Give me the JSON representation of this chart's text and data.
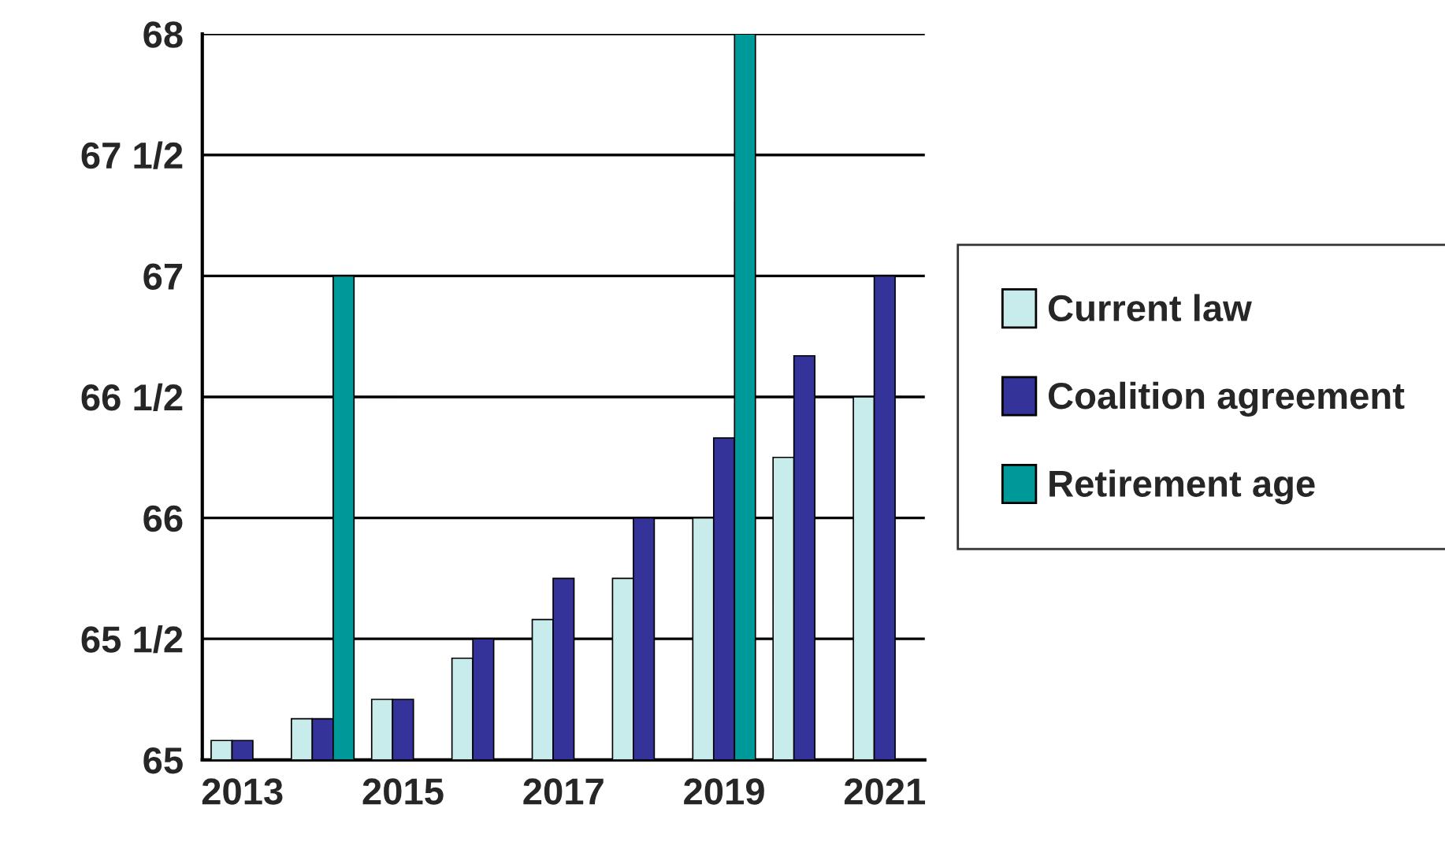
{
  "chart_data": {
    "type": "bar",
    "categories": [
      "2013",
      null,
      "2015",
      null,
      "2017",
      null,
      "2019",
      null,
      "2021"
    ],
    "series": [
      {
        "name": "Current law",
        "color": "#c8ecec",
        "values": [
          65.08,
          65.17,
          65.25,
          65.42,
          65.58,
          65.75,
          66,
          66.25,
          66.5
        ]
      },
      {
        "name": "Coalition agreement",
        "color": "#333399",
        "values": [
          65.08,
          65.17,
          65.25,
          65.5,
          65.75,
          66,
          66.33,
          66.67,
          67
        ]
      },
      {
        "name": "Retirement age",
        "color": "#009999",
        "values": [
          null,
          67,
          null,
          null,
          null,
          null,
          68,
          null,
          null
        ]
      }
    ],
    "ylim": [
      65,
      68
    ],
    "yticks": [
      65,
      {
        "value": 65.5,
        "label": "65 1/2"
      },
      66,
      {
        "value": 66.5,
        "label": "66 1/2"
      },
      67,
      {
        "value": 67.5,
        "label": "67 1/2"
      },
      68
    ],
    "grid": "y",
    "legend": "right"
  }
}
